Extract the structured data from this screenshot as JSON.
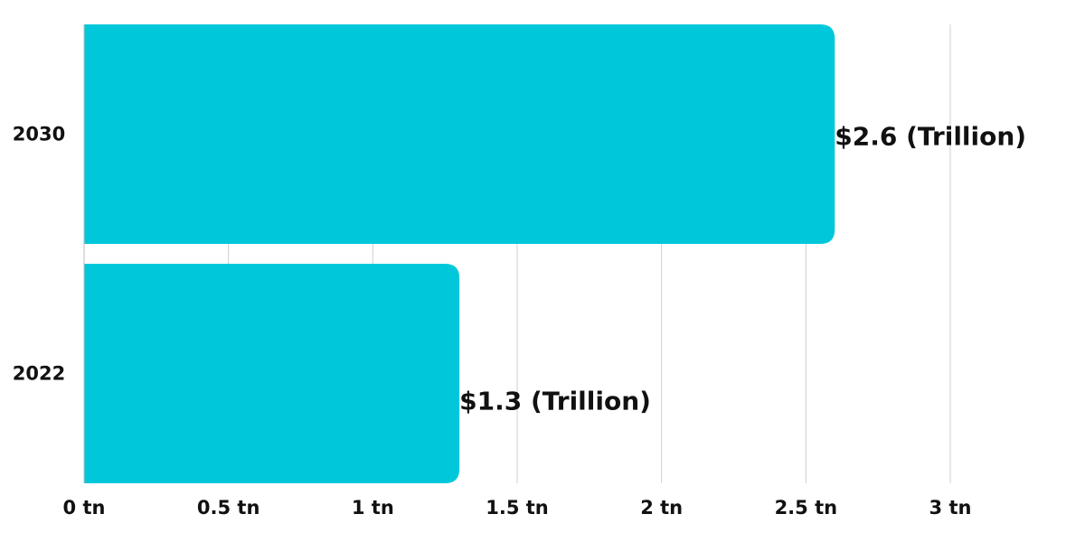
{
  "chart_data": {
    "type": "bar",
    "orientation": "horizontal",
    "categories": [
      "2030",
      "2022"
    ],
    "values": [
      2.6,
      1.3
    ],
    "data_labels": [
      "$2.6 (Trillion)",
      "$1.3 (Trillion)"
    ],
    "xlim": [
      0,
      3
    ],
    "x_ticks": [
      0,
      0.5,
      1,
      1.5,
      2,
      2.5,
      3
    ],
    "x_tick_labels": [
      "0 tn",
      "0.5 tn",
      "1 tn",
      "1.5 tn",
      "2 tn",
      "2.5 tn",
      "3 tn"
    ],
    "grid": "vertical",
    "legend": "none",
    "bar_color": "#00C8DA",
    "title": "",
    "xlabel": "",
    "ylabel": ""
  }
}
